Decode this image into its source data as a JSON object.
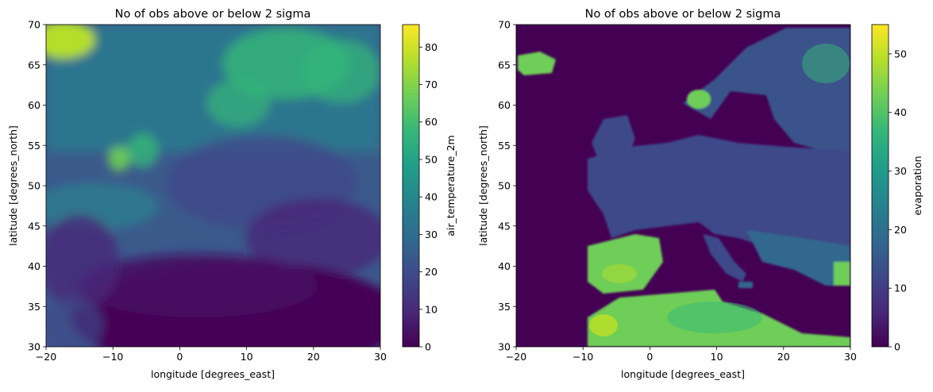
{
  "chart_data": [
    {
      "type": "heatmap",
      "title": "No of obs above or below 2 sigma",
      "xlabel": "longitude [degrees_east]",
      "ylabel": "latitude [degrees_north]",
      "xlim": [
        -20,
        30
      ],
      "ylim": [
        30,
        70
      ],
      "x_ticks": [
        -20,
        -10,
        0,
        10,
        20,
        30
      ],
      "x_tick_labels": [
        "−20",
        "−10",
        "0",
        "10",
        "20",
        "30"
      ],
      "y_ticks": [
        30,
        35,
        40,
        45,
        50,
        55,
        60,
        65,
        70
      ],
      "y_tick_labels": [
        "30",
        "35",
        "40",
        "45",
        "50",
        "55",
        "60",
        "65",
        "70"
      ],
      "colorbar": {
        "label": "air_temperature_2m",
        "colormap": "viridis",
        "range": [
          0,
          86
        ],
        "ticks": [
          0,
          10,
          20,
          30,
          40,
          50,
          60,
          70,
          80
        ],
        "tick_labels": [
          "0",
          "10",
          "20",
          "30",
          "40",
          "50",
          "60",
          "70",
          "80"
        ]
      },
      "grid": false
    },
    {
      "type": "heatmap",
      "title": "No of obs above or below 2 sigma",
      "xlabel": "longitude [degrees_east]",
      "ylabel": "latitude [degrees_north]",
      "xlim": [
        -20,
        30
      ],
      "ylim": [
        30,
        70
      ],
      "x_ticks": [
        -20,
        -10,
        0,
        10,
        20,
        30
      ],
      "x_tick_labels": [
        "−20",
        "−10",
        "0",
        "10",
        "20",
        "30"
      ],
      "y_ticks": [
        30,
        35,
        40,
        45,
        50,
        55,
        60,
        65,
        70
      ],
      "y_tick_labels": [
        "30",
        "35",
        "40",
        "45",
        "50",
        "55",
        "60",
        "65",
        "70"
      ],
      "colorbar": {
        "label": "evaporation",
        "colormap": "viridis",
        "range": [
          0,
          55
        ],
        "ticks": [
          0,
          10,
          20,
          30,
          40,
          50
        ],
        "tick_labels": [
          "0",
          "10",
          "20",
          "30",
          "40",
          "50"
        ]
      },
      "grid": false
    }
  ],
  "colors": {
    "viridis": [
      "#440154",
      "#482878",
      "#3e4989",
      "#31688e",
      "#26828e",
      "#1f9e89",
      "#35b779",
      "#6ece58",
      "#b5de2b",
      "#fde725"
    ]
  }
}
